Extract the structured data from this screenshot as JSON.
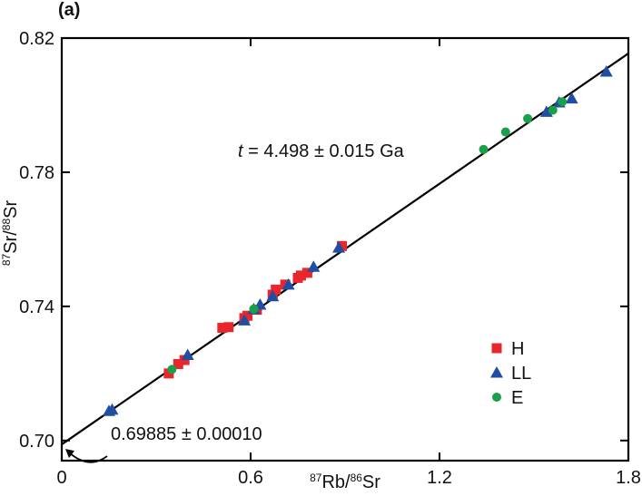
{
  "panel_label": "(a)",
  "chart_data": {
    "type": "scatter",
    "xlabel": {
      "prefix_sup": "87",
      "main1": "Rb/",
      "mid_sup": "86",
      "main2": "Sr"
    },
    "ylabel": {
      "prefix_sup": "87",
      "main1": "Sr/",
      "mid_sup": "88",
      "main2": "Sr"
    },
    "xlim": [
      0,
      1.8
    ],
    "ylim": [
      0.694,
      0.82
    ],
    "xticks": [
      0,
      0.6,
      1.2,
      1.8
    ],
    "xtick_labels": [
      "0",
      "0.6",
      "1.2",
      "1.8"
    ],
    "yticks": [
      0.7,
      0.74,
      0.78,
      0.82
    ],
    "ytick_labels": [
      "0.70",
      "0.74",
      "0.78",
      "0.82"
    ],
    "grid": false,
    "legend_placement": "bottom-right",
    "fit_line": {
      "intercept": 0.69885,
      "slope": 0.06476,
      "x_range": [
        0,
        1.8
      ]
    },
    "age_annotation": {
      "var": "t",
      "text": " = 4.498 ± 0.015 Ga"
    },
    "intercept_annotation": "0.69885 ± 0.00010",
    "series": [
      {
        "name": "H",
        "marker": "square",
        "color": "#e8262c",
        "x": [
          0.34,
          0.37,
          0.39,
          0.51,
          0.53,
          0.58,
          0.59,
          0.62,
          0.67,
          0.68,
          0.71,
          0.75,
          0.76,
          0.78,
          0.89
        ],
        "y": [
          0.72,
          0.7228,
          0.724,
          0.7336,
          0.7338,
          0.7365,
          0.7372,
          0.739,
          0.7435,
          0.745,
          0.7465,
          0.7485,
          0.7492,
          0.75,
          0.758
        ]
      },
      {
        "name": "LL",
        "marker": "triangle",
        "color": "#1f4ea3",
        "x": [
          0.15,
          0.16,
          0.4,
          0.58,
          0.61,
          0.63,
          0.67,
          0.72,
          0.8,
          0.88,
          1.54,
          1.58,
          1.62,
          1.73
        ],
        "y": [
          0.7088,
          0.7092,
          0.7255,
          0.7358,
          0.7392,
          0.7405,
          0.743,
          0.7465,
          0.7518,
          0.7575,
          0.798,
          0.8008,
          0.802,
          0.81
        ]
      },
      {
        "name": "E",
        "marker": "circle",
        "color": "#1aa04a",
        "x": [
          0.35,
          0.61,
          1.34,
          1.41,
          1.48,
          1.56,
          1.59
        ],
        "y": [
          0.7212,
          0.7392,
          0.7868,
          0.792,
          0.796,
          0.7985,
          0.801
        ]
      }
    ]
  }
}
